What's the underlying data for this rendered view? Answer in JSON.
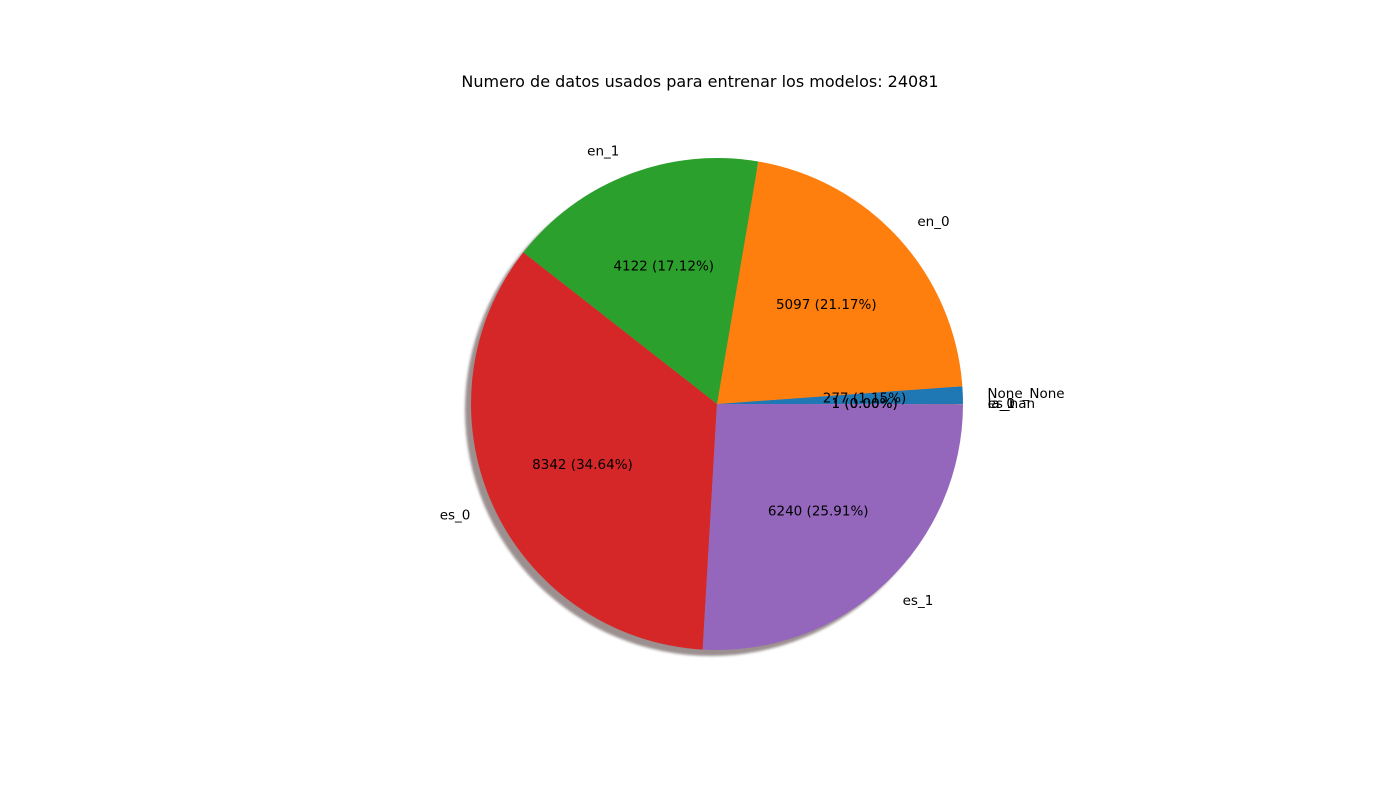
{
  "chart_data": {
    "type": "pie",
    "title": "Numero de datos usados para entrenar los modelos: 24081",
    "slices": [
      {
        "label": "None_None",
        "value": 277,
        "pct_text": "277 (1.15%)",
        "color": "#1f77b4"
      },
      {
        "label": "en_0",
        "value": 5097,
        "pct_text": "5097 (21.17%)",
        "color": "#ff7f0e"
      },
      {
        "label": "en_1",
        "value": 4122,
        "pct_text": "4122 (17.12%)",
        "color": "#2ca02c"
      },
      {
        "label": "es_0",
        "value": 8342,
        "pct_text": "8342 (34.64%)",
        "color": "#d62728"
      },
      {
        "label": "es_1",
        "value": 6240,
        "pct_text": "6240 (25.91%)",
        "color": "#9467bd"
      },
      {
        "label": "es_nan",
        "value": 1,
        "pct_text": "1 (0.00%)",
        "color": "#8c564b"
      },
      {
        "label": "la_0",
        "value": 1,
        "pct_text": "1 (0.00%)",
        "color": "#e377c2"
      },
      {
        "label": "la_1",
        "value": 1,
        "pct_text": "1 (0.00%)",
        "color": "#7f7f7f"
      }
    ],
    "shadow": true,
    "start_angle_deg": 0,
    "counterclockwise": true
  }
}
